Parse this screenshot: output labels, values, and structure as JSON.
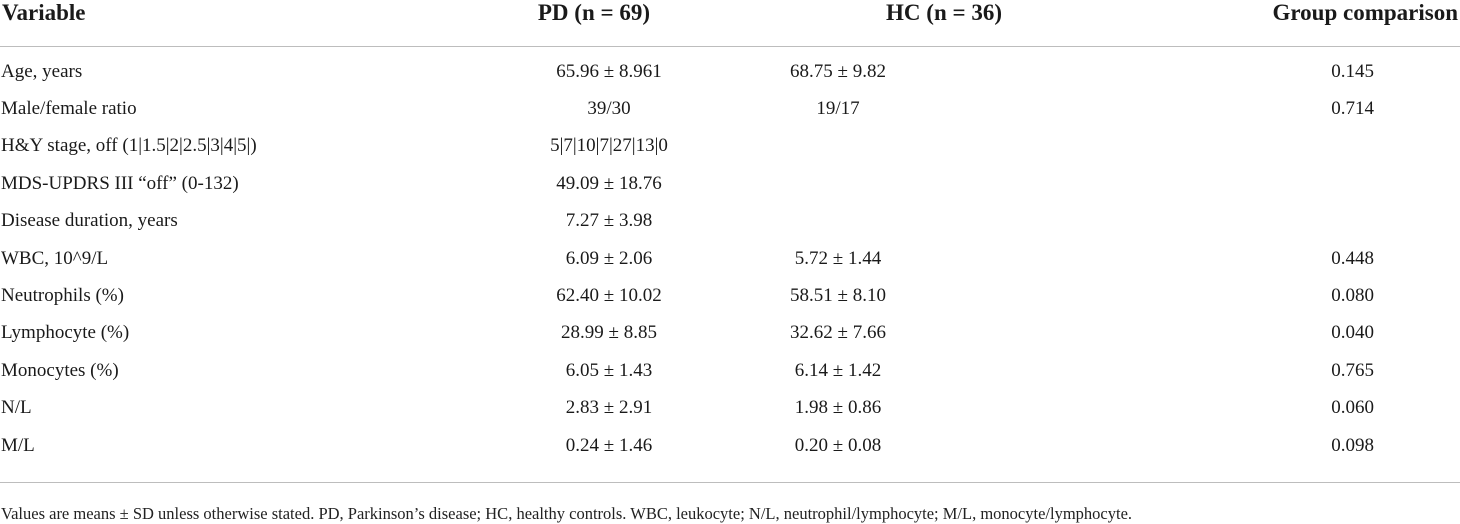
{
  "table": {
    "headers": [
      "Variable",
      "PD (n = 69)",
      "HC (n = 36)",
      "Group comparison"
    ],
    "rows": [
      [
        "Age, years",
        "65.96 ± 8.961",
        "68.75 ± 9.82",
        "0.145"
      ],
      [
        "Male/female ratio",
        "39/30",
        "19/17",
        "0.714"
      ],
      [
        "H&Y stage, off (1|1.5|2|2.5|3|4|5|)",
        "5|7|10|7|27|13|0",
        "",
        ""
      ],
      [
        "MDS-UPDRS III “off” (0-132)",
        "49.09 ± 18.76",
        "",
        ""
      ],
      [
        "Disease duration, years",
        "7.27 ± 3.98",
        "",
        ""
      ],
      [
        "WBC, 10^9/L",
        "6.09 ± 2.06",
        "5.72 ± 1.44",
        "0.448"
      ],
      [
        "Neutrophils (%)",
        "62.40 ± 10.02",
        "58.51 ± 8.10",
        "0.080"
      ],
      [
        "Lymphocyte (%)",
        "28.99 ± 8.85",
        "32.62 ± 7.66",
        "0.040"
      ],
      [
        "Monocytes (%)",
        "6.05 ± 1.43",
        "6.14 ± 1.42",
        "0.765"
      ],
      [
        "N/L",
        "2.83 ± 2.91",
        "1.98 ± 0.86",
        "0.060"
      ],
      [
        "M/L",
        "0.24 ± 1.46",
        "0.20 ± 0.08",
        "0.098"
      ]
    ]
  },
  "footnote": "Values are means ± SD unless otherwise stated. PD, Parkinson’s disease; HC, healthy controls. WBC, leukocyte; N/L, neutrophil/lymphocyte; M/L, monocyte/lymphocyte."
}
